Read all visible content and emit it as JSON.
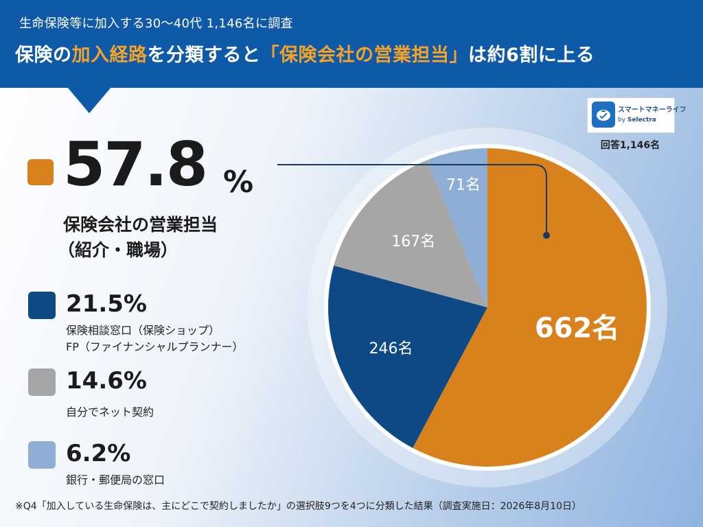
{
  "header": {
    "subtitle": "生命保険等に加入する30〜40代 1,146名に調査",
    "title_parts": [
      "保険の",
      "加入経路",
      "を分類すると",
      "「保険会社の営業担当」",
      "は約6割に上る"
    ]
  },
  "logo": {
    "name": "スマートマネーライフ",
    "by_prefix": "by",
    "by_brand": "Selectra"
  },
  "total_respondents": "回答1,146名",
  "legend": [
    {
      "percent": "57.8",
      "percent_sign": "%",
      "label_lines": [
        "保険会社の営業担当",
        "（紹介・職場）"
      ],
      "color": "#d9811c"
    },
    {
      "percent": "21.5%",
      "label_lines": [
        "保険相談窓口（保険ショップ）",
        "FP（ファイナンシャルプランナー）"
      ],
      "color": "#0d4a85"
    },
    {
      "percent": "14.6%",
      "label_lines": [
        "自分でネット契約"
      ],
      "color": "#a6a6a6"
    },
    {
      "percent": "6.2%",
      "label_lines": [
        "銀行・郵便局の窓口"
      ],
      "color": "#8eaed6"
    }
  ],
  "footnote": "※Q4「加入している生命保険は、主にどこで契約しましたか」の選択肢9つを4つに分類した結果（調査実施日：2026年8月10日）",
  "chart_data": {
    "type": "pie",
    "title": "保険の加入経路を分類すると「保険会社の営業担当」は約6割に上る",
    "categories": [
      "保険会社の営業担当（紹介・職場）",
      "保険相談窓口（保険ショップ）／FP（ファイナンシャルプランナー）",
      "自分でネット契約",
      "銀行・郵便局の窓口"
    ],
    "values": [
      662,
      246,
      167,
      71
    ],
    "percentages": [
      57.8,
      21.5,
      14.6,
      6.2
    ],
    "data_labels": [
      "662名",
      "246名",
      "167名",
      "71名"
    ],
    "colors": [
      "#d9811c",
      "#0d4a85",
      "#a6a6a6",
      "#8eaed6"
    ],
    "total": 1146
  }
}
